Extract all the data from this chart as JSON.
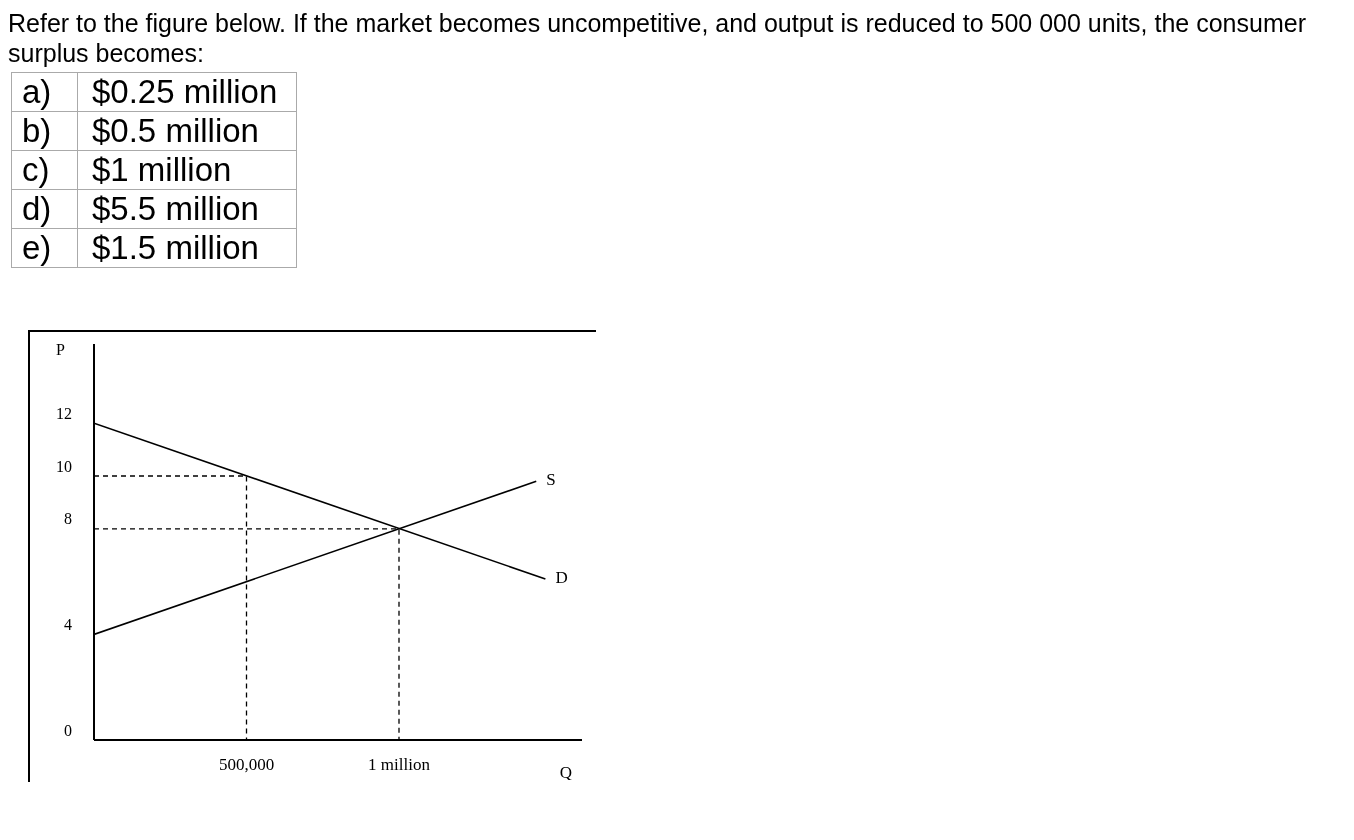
{
  "chart_data": {
    "type": "line",
    "title": "Refer to the figure below. If the market becomes uncompetitive, and output is reduced to 500 000 units, the consumer surplus becomes:",
    "annotations": [
      "a) $0.25 million",
      "b) $0.5 million",
      "c) $1 million",
      "d) $5.5 million",
      "e) $1.5 million"
    ],
    "xlabel": "Q",
    "ylabel": "P",
    "series": [
      {
        "name": "S",
        "color": "#000000",
        "x": [
          0,
          1450000
        ],
        "values": [
          4,
          9.8
        ]
      },
      {
        "name": "D",
        "color": "#000000",
        "x": [
          0,
          1480000
        ],
        "values": [
          12,
          6.1
        ]
      },
      {
        "color": "#000000",
        "line_style": "dashed",
        "x": [
          0,
          500000,
          500000
        ],
        "values": [
          10,
          10,
          0
        ]
      },
      {
        "color": "#000000",
        "line_style": "dashed",
        "x": [
          0,
          1000000,
          1000000
        ],
        "values": [
          8,
          8,
          0
        ]
      }
    ],
    "xlim": [
      0,
      1600000
    ],
    "xticks": [
      {
        "value": 500000,
        "label": "500,000"
      },
      {
        "value": 1000000,
        "label": "1 million"
      }
    ],
    "ylim": [
      0,
      15
    ],
    "yticks": [
      0,
      4,
      8,
      10,
      12
    ],
    "grid": false,
    "legend": false
  }
}
